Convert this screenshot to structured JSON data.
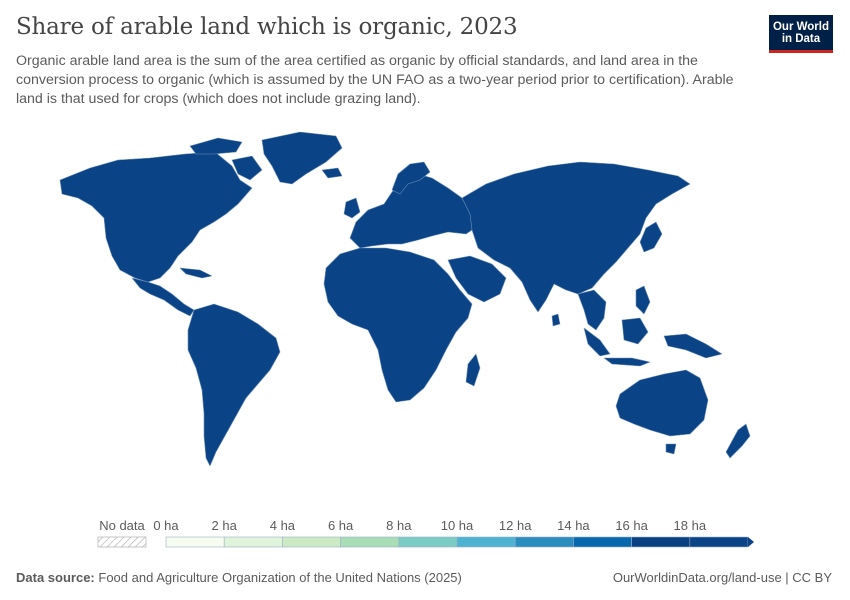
{
  "header": {
    "title": "Share of arable land which is organic, 2023",
    "subtitle": "Organic arable land area is the sum of the area certified as organic by official standards, and land area in the conversion process to organic (which is assumed by the UN FAO as a two-year period prior to certification). Arable land is that used for crops (which does not include grazing land).",
    "logo_text": "Our World\nin Data"
  },
  "legend": {
    "no_data_label": "No data",
    "ticks": [
      "0 ha",
      "2 ha",
      "4 ha",
      "6 ha",
      "8 ha",
      "10 ha",
      "12 ha",
      "14 ha",
      "16 ha",
      "18 ha"
    ],
    "bin_colors": [
      "#f7fcf0",
      "#e0f3db",
      "#ccebc5",
      "#a8ddb5",
      "#7bccc4",
      "#4eb3d3",
      "#2b8cbe",
      "#0868ac",
      "#084081",
      "#0b4486"
    ]
  },
  "colors": {
    "land": "#0b4486",
    "border": "#6f90b8",
    "logo_bg": "#002147",
    "logo_accent": "#ce261e"
  },
  "footer": {
    "source_label": "Data source:",
    "source_text": "Food and Agriculture Organization of the United Nations (2025)",
    "url_license": "OurWorldinData.org/land-use | CC BY"
  }
}
